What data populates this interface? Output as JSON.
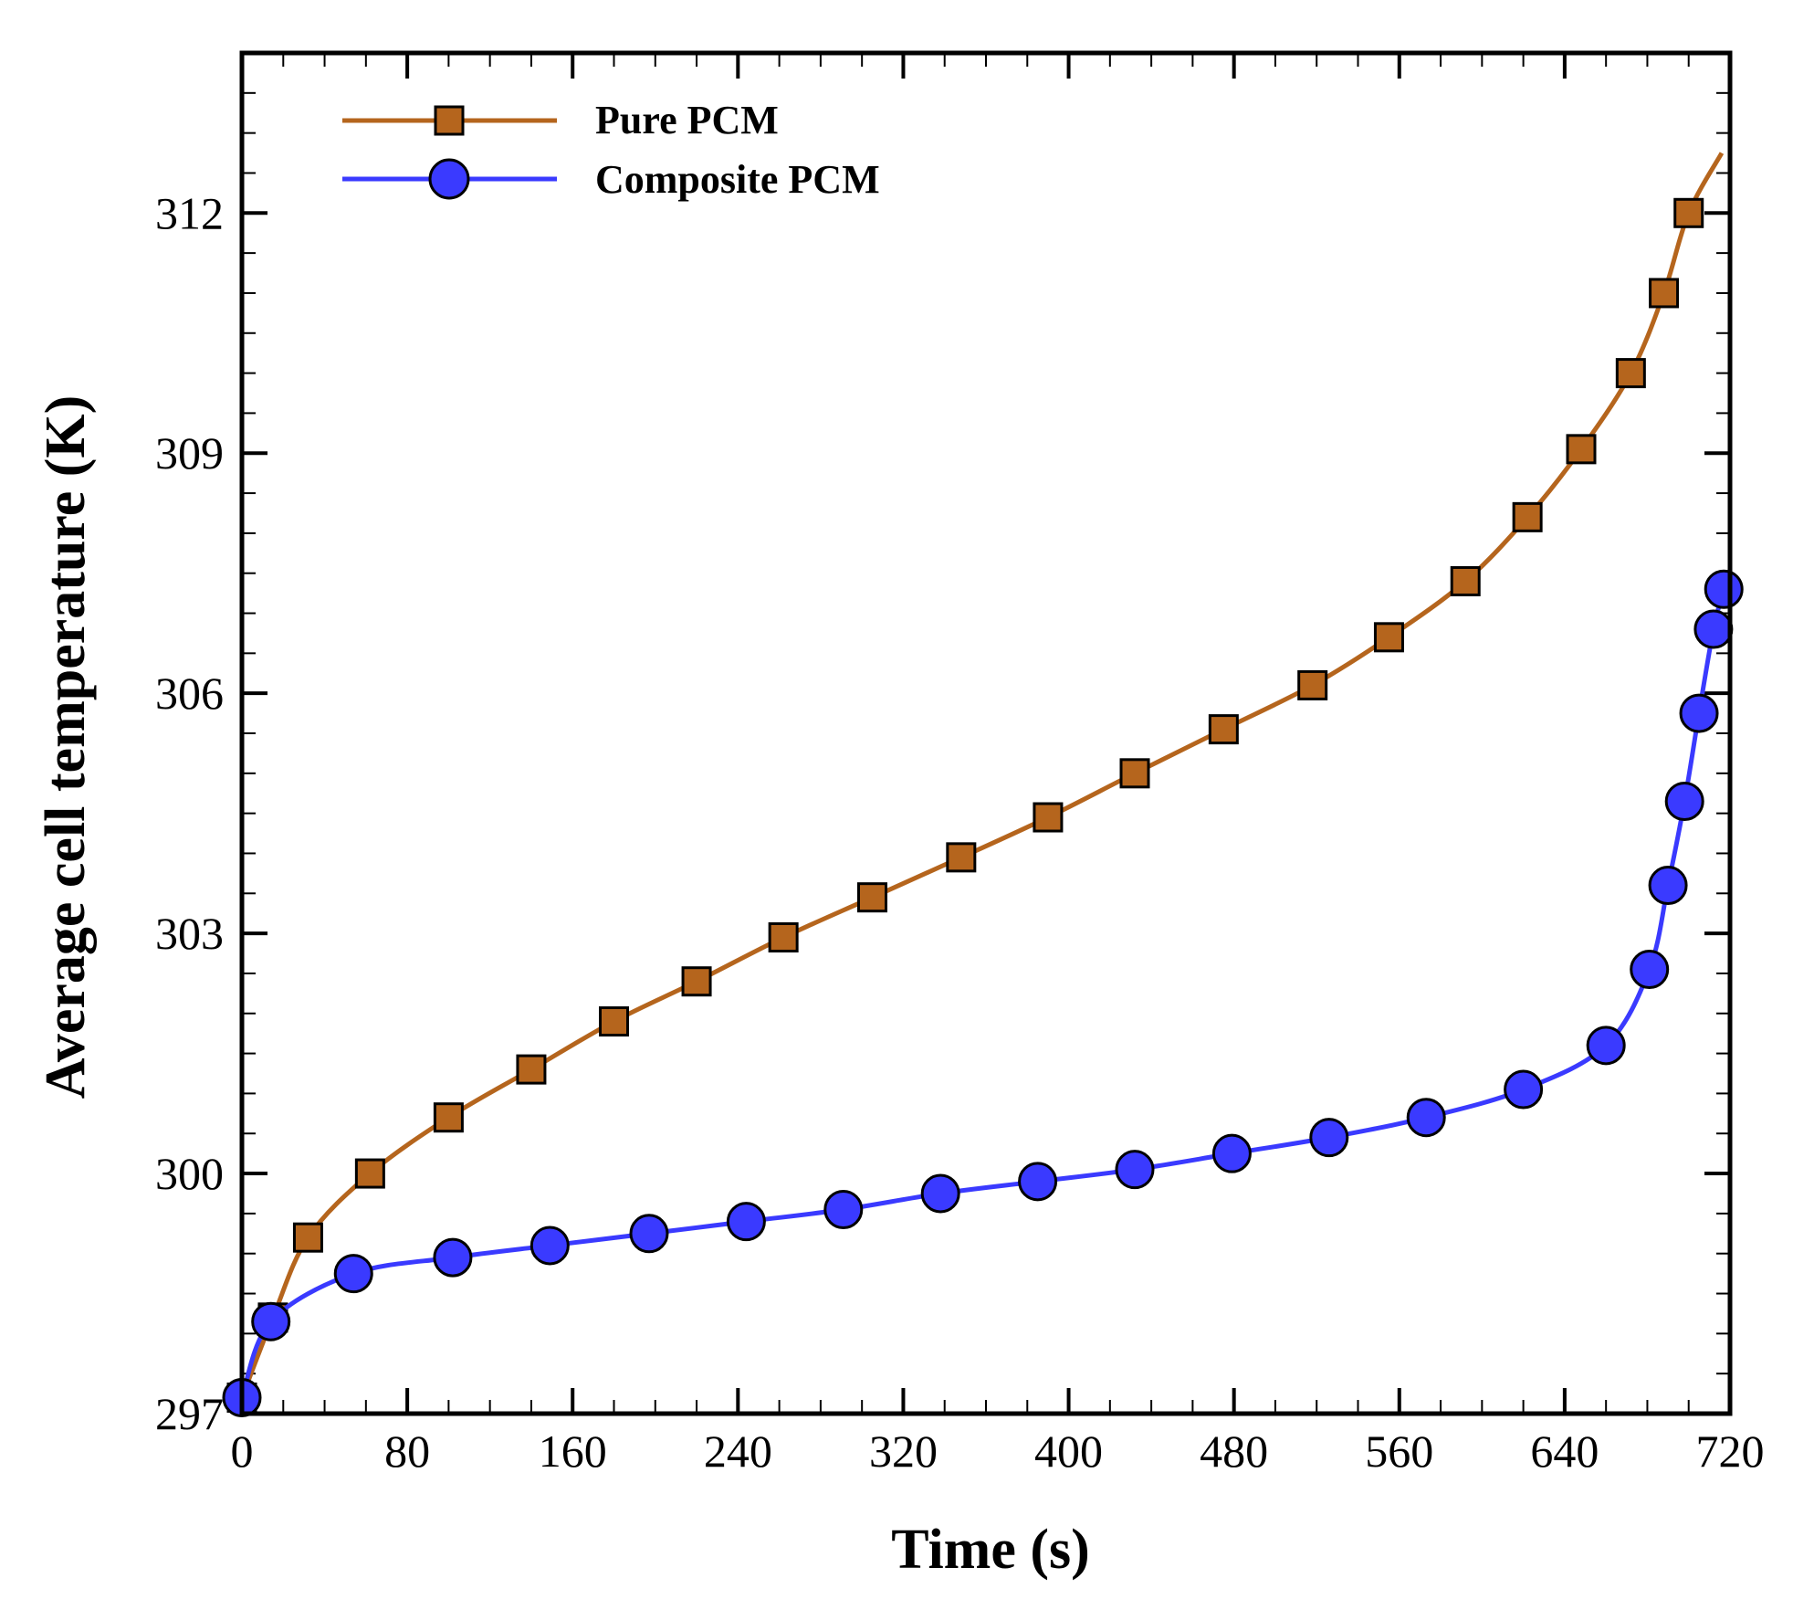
{
  "chart_data": {
    "type": "line",
    "title": "",
    "xlabel": "Time (s)",
    "ylabel": "Average cell temperature (K)",
    "xlim": [
      0,
      720
    ],
    "ylim": [
      297,
      314
    ],
    "xticks": [
      0,
      80,
      160,
      240,
      320,
      400,
      480,
      560,
      640,
      720
    ],
    "yticks": [
      297,
      300,
      303,
      306,
      309,
      312
    ],
    "grid": false,
    "legend_position": "top-left",
    "series": [
      {
        "name": "Pure PCM",
        "color": "#b5651d",
        "marker": "square",
        "x": [
          0,
          15,
          32,
          62,
          100,
          140,
          180,
          220,
          262,
          305,
          348,
          390,
          432,
          475,
          518,
          555,
          592,
          622,
          648,
          672,
          688,
          700,
          716
        ],
        "y": [
          297.2,
          298.2,
          299.2,
          300.0,
          300.7,
          301.3,
          301.9,
          302.4,
          302.95,
          303.45,
          303.95,
          304.45,
          305.0,
          305.55,
          306.1,
          306.7,
          307.4,
          308.2,
          309.05,
          310.0,
          311.0,
          312.0,
          312.75
        ]
      },
      {
        "name": "Composite PCM",
        "color": "#3a3aff",
        "marker": "circle",
        "x": [
          0,
          14,
          54,
          102,
          149,
          197,
          244,
          291,
          338,
          385,
          432,
          479,
          526,
          573,
          620,
          660,
          681,
          690,
          698,
          705,
          712,
          717
        ],
        "y": [
          297.2,
          298.15,
          298.75,
          298.95,
          299.1,
          299.25,
          299.4,
          299.55,
          299.75,
          299.9,
          300.05,
          300.25,
          300.45,
          300.7,
          301.05,
          301.6,
          302.55,
          303.6,
          304.65,
          305.75,
          306.8,
          307.3
        ]
      }
    ]
  }
}
